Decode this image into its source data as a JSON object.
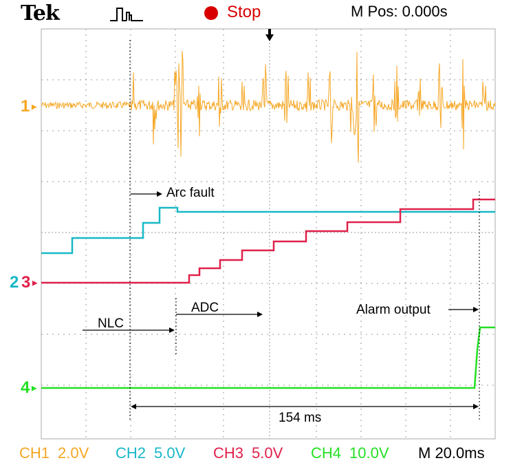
{
  "header": {
    "brand": "Tek",
    "trigger_icon": "pulse-trigger-icon",
    "run_state": "Stop",
    "run_state_color": "#d80000",
    "m_pos": "M Pos: 0.000s"
  },
  "channels": {
    "ch1": {
      "marker": "1",
      "color": "#f5a623"
    },
    "ch2": {
      "marker": "2",
      "color": "#17b8c8"
    },
    "ch3": {
      "marker": "3",
      "color": "#e0204a"
    },
    "ch4": {
      "marker": "4",
      "color": "#22e022"
    }
  },
  "annotations": {
    "arc_fault": "Arc fault",
    "adc": "ADC",
    "nlc": "NLC",
    "alarm_output": "Alarm output",
    "duration": "154 ms"
  },
  "footer": {
    "ch1": "CH1",
    "ch1_scale": "2.0V",
    "ch2": "CH2",
    "ch2_scale": "5.0V",
    "ch3": "CH3",
    "ch3_scale": "5.0V",
    "ch4": "CH4",
    "ch4_scale": "10.0V",
    "timebase": "M 20.0ms"
  }
}
